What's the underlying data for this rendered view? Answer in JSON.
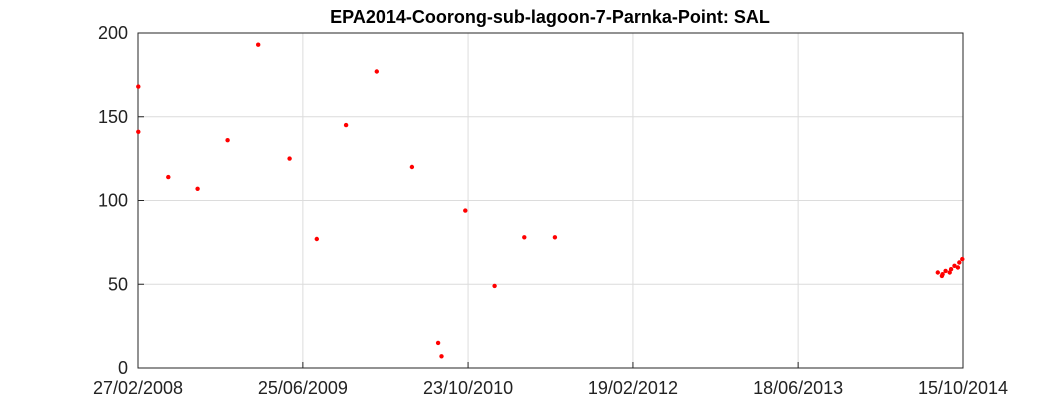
{
  "chart_data": {
    "type": "scatter",
    "title": "EPA2014-Coorong-sub-lagoon-7-Parnka-Point: SAL",
    "xlabel": "",
    "ylabel": "",
    "x_ticks": [
      "27/02/2008",
      "25/06/2009",
      "23/10/2010",
      "19/02/2012",
      "18/06/2013",
      "15/10/2014"
    ],
    "x_range": [
      "27/02/2008",
      "15/10/2014"
    ],
    "y_ticks": [
      "0",
      "50",
      "100",
      "150",
      "200"
    ],
    "ylim": [
      0,
      200
    ],
    "grid": true,
    "marker_color": "#ff0000",
    "series": [
      {
        "points": [
          {
            "x": "2008-02-28",
            "y": 168
          },
          {
            "x": "2008-02-28",
            "y": 141
          },
          {
            "x": "2008-05-26",
            "y": 114
          },
          {
            "x": "2008-08-20",
            "y": 107
          },
          {
            "x": "2008-11-16",
            "y": 136
          },
          {
            "x": "2009-02-14",
            "y": 193
          },
          {
            "x": "2009-05-17",
            "y": 125
          },
          {
            "x": "2009-08-05",
            "y": 77
          },
          {
            "x": "2009-10-30",
            "y": 145
          },
          {
            "x": "2010-01-28",
            "y": 177
          },
          {
            "x": "2010-05-11",
            "y": 120
          },
          {
            "x": "2010-07-27",
            "y": 15
          },
          {
            "x": "2010-08-06",
            "y": 7
          },
          {
            "x": "2010-10-15",
            "y": 94
          },
          {
            "x": "2011-01-09",
            "y": 49
          },
          {
            "x": "2011-04-06",
            "y": 78
          },
          {
            "x": "2011-07-05",
            "y": 78
          },
          {
            "x": "2014-08-02",
            "y": 57
          },
          {
            "x": "2014-08-14",
            "y": 55
          },
          {
            "x": "2014-08-16",
            "y": 56
          },
          {
            "x": "2014-08-25",
            "y": 58
          },
          {
            "x": "2014-09-06",
            "y": 57
          },
          {
            "x": "2014-09-10",
            "y": 59
          },
          {
            "x": "2014-09-20",
            "y": 61
          },
          {
            "x": "2014-09-30",
            "y": 60
          },
          {
            "x": "2014-10-04",
            "y": 63
          },
          {
            "x": "2014-10-13",
            "y": 65
          }
        ]
      }
    ]
  }
}
